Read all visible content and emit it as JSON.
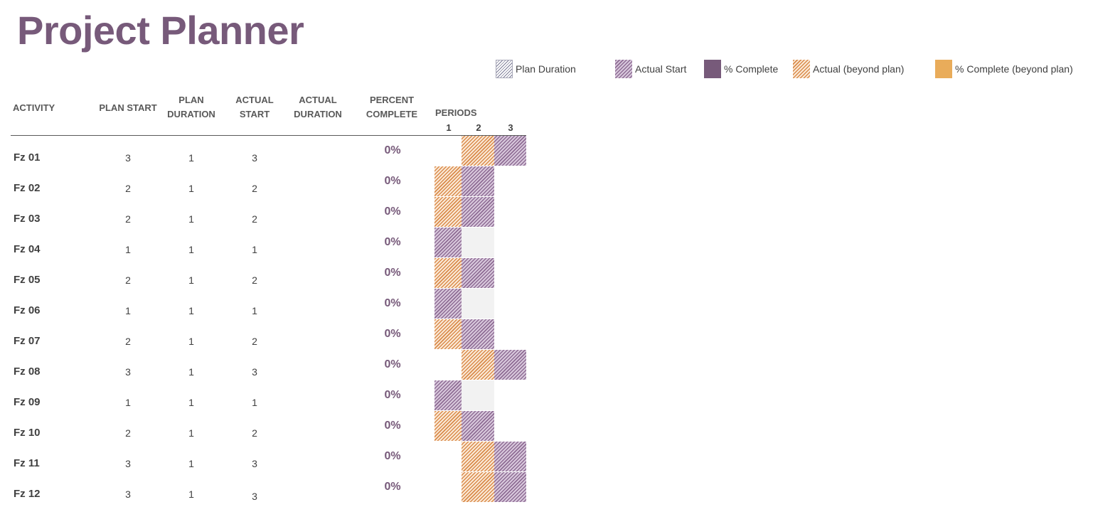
{
  "title": "Project Planner",
  "legend": {
    "plan_duration": "Plan Duration",
    "actual_start": "Actual Start",
    "percent_complete": "% Complete",
    "actual_beyond": "Actual (beyond plan)",
    "percent_complete_beyond": "% Complete (beyond plan)"
  },
  "headers": {
    "activity": "ACTIVITY",
    "plan_start": "PLAN START",
    "plan_duration_1": "PLAN",
    "plan_duration_2": "DURATION",
    "actual_start_1": "ACTUAL",
    "actual_start_2": "START",
    "actual_duration_1": "ACTUAL",
    "actual_duration_2": "DURATION",
    "percent_complete_1": "PERCENT",
    "percent_complete_2": "COMPLETE",
    "periods": "PERIODS"
  },
  "periods": [
    "1",
    "2",
    "3"
  ],
  "colors": {
    "title": "#775a7a",
    "percent_complete": "#775a7a",
    "percent_complete_beyond": "#e9ac5a",
    "actual_hatch": "#8e6c94",
    "beyond_hatch": "#d98b4c"
  },
  "activities": [
    {
      "name": "Fz 01",
      "plan_start": "3",
      "plan_duration": "1",
      "actual_start": "3",
      "actual_duration": "",
      "percent_complete": "0%",
      "cells": [
        "none",
        "beyond",
        "actual"
      ]
    },
    {
      "name": "Fz 02",
      "plan_start": "2",
      "plan_duration": "1",
      "actual_start": "2",
      "actual_duration": "",
      "percent_complete": "0%",
      "cells": [
        "beyond",
        "actual",
        "none"
      ]
    },
    {
      "name": "Fz 03",
      "plan_start": "2",
      "plan_duration": "1",
      "actual_start": "2",
      "actual_duration": "",
      "percent_complete": "0%",
      "cells": [
        "beyond",
        "actual",
        "none"
      ]
    },
    {
      "name": "Fz 04",
      "plan_start": "1",
      "plan_duration": "1",
      "actual_start": "1",
      "actual_duration": "",
      "percent_complete": "0%",
      "cells": [
        "actual",
        "empty",
        "none"
      ]
    },
    {
      "name": "Fz 05",
      "plan_start": "2",
      "plan_duration": "1",
      "actual_start": "2",
      "actual_duration": "",
      "percent_complete": "0%",
      "cells": [
        "beyond",
        "actual",
        "none"
      ]
    },
    {
      "name": "Fz 06",
      "plan_start": "1",
      "plan_duration": "1",
      "actual_start": "1",
      "actual_duration": "",
      "percent_complete": "0%",
      "cells": [
        "actual",
        "empty",
        "none"
      ]
    },
    {
      "name": "Fz 07",
      "plan_start": "2",
      "plan_duration": "1",
      "actual_start": "2",
      "actual_duration": "",
      "percent_complete": "0%",
      "cells": [
        "beyond",
        "actual",
        "none"
      ]
    },
    {
      "name": "Fz 08",
      "plan_start": "3",
      "plan_duration": "1",
      "actual_start": "3",
      "actual_duration": "",
      "percent_complete": "0%",
      "cells": [
        "none",
        "beyond",
        "actual"
      ]
    },
    {
      "name": "Fz 09",
      "plan_start": "1",
      "plan_duration": "1",
      "actual_start": "1",
      "actual_duration": "",
      "percent_complete": "0%",
      "cells": [
        "actual",
        "empty",
        "none"
      ]
    },
    {
      "name": "Fz 10",
      "plan_start": "2",
      "plan_duration": "1",
      "actual_start": "2",
      "actual_duration": "",
      "percent_complete": "0%",
      "cells": [
        "beyond",
        "actual",
        "none"
      ]
    },
    {
      "name": "Fz 11",
      "plan_start": "3",
      "plan_duration": "1",
      "actual_start": "3",
      "actual_duration": "",
      "percent_complete": "0%",
      "cells": [
        "none",
        "beyond",
        "actual"
      ]
    },
    {
      "name": "Fz 12",
      "plan_start": "3",
      "plan_duration": "1",
      "actual_start": "3",
      "actual_duration": "",
      "percent_complete": "0%",
      "cells": [
        "none",
        "beyond",
        "actual"
      ]
    }
  ]
}
